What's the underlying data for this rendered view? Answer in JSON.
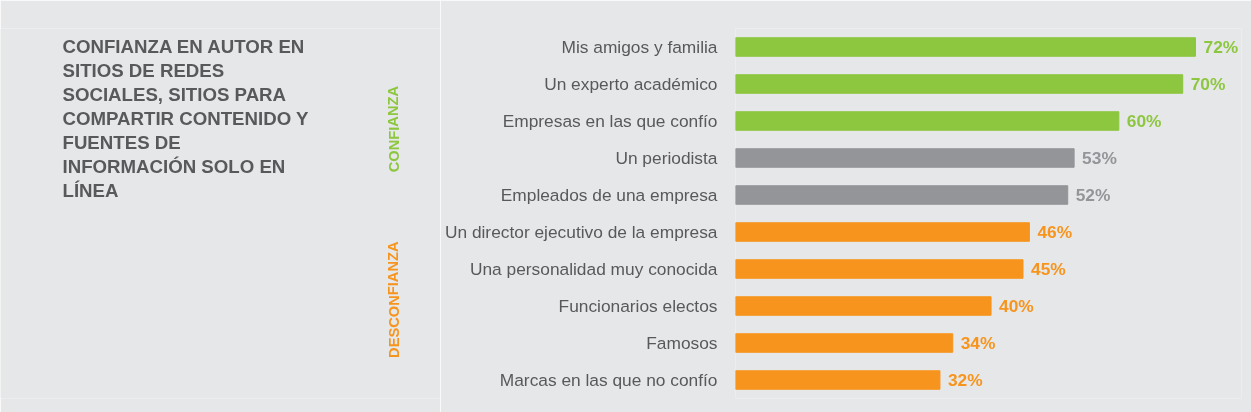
{
  "chart_data": {
    "type": "bar",
    "orientation": "horizontal",
    "title": "CONFIANZA EN AUTOR EN SITIOS DE REDES SOCIALES, SITIOS PARA COMPARTIR CONTENIDO Y FUENTES DE INFORMACIÓN SOLO EN LÍNEA",
    "annotations": [
      "CONFIANZA",
      "DESCONFIANZA"
    ],
    "categories": [
      "Mis amigos y familia",
      "Un experto académico",
      "Empresas en las que confío",
      "Un periodista",
      "Empleados de una empresa",
      "Un director ejecutivo de la empresa",
      "Una personalidad muy conocida",
      "Funcionarios electos",
      "Famosos",
      "Marcas en las que no confío"
    ],
    "values": [
      72,
      70,
      60,
      53,
      52,
      46,
      45,
      40,
      34,
      32
    ],
    "value_labels": [
      "72%",
      "70%",
      "60%",
      "53%",
      "52%",
      "46%",
      "45%",
      "40%",
      "34%",
      "32%"
    ],
    "colors": [
      "#8dc63f",
      "#8dc63f",
      "#8dc63f",
      "#939598",
      "#939598",
      "#f7941d",
      "#f7941d",
      "#f7941d",
      "#f7941d",
      "#f7941d"
    ]
  }
}
